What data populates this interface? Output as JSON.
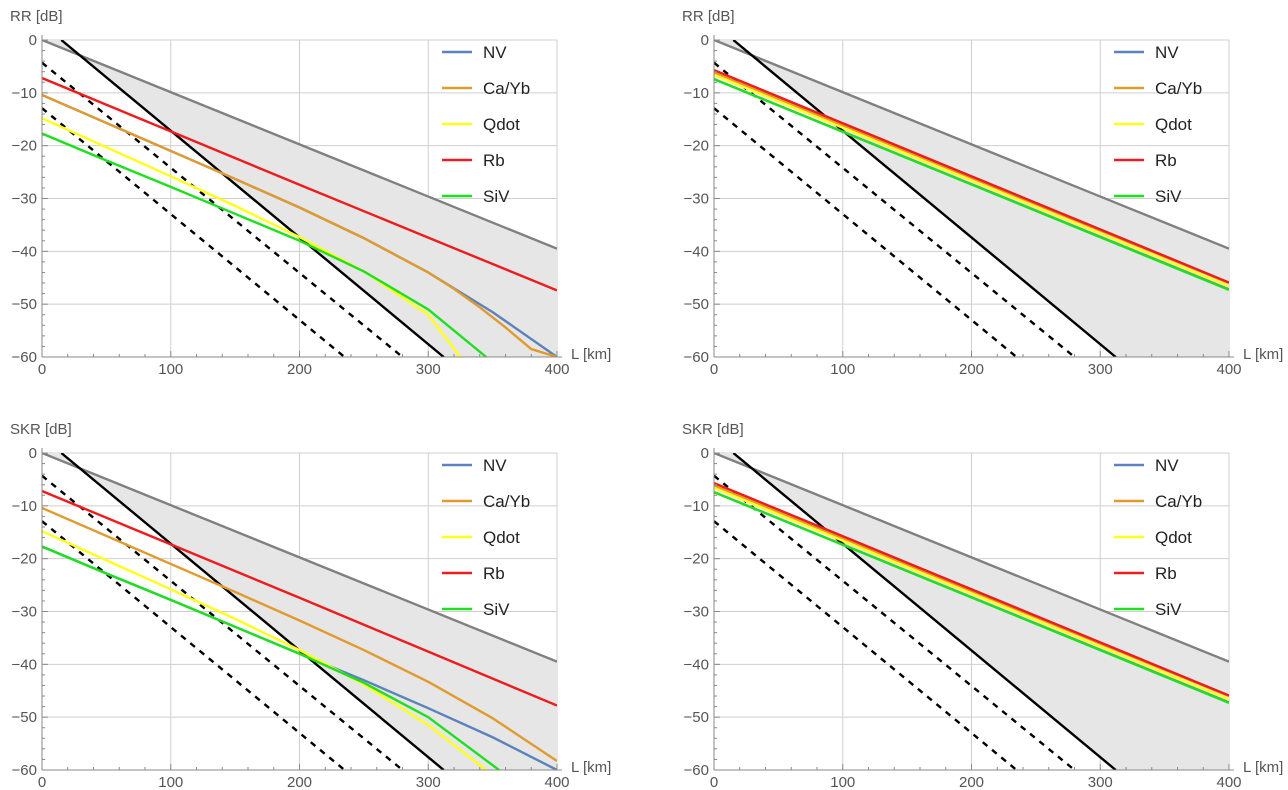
{
  "chart_data": [
    {
      "type": "line",
      "panel": "top-left",
      "ylabel": "RR [dB]",
      "xlabel": "L [km]",
      "xlim": [
        0,
        400
      ],
      "ylim": [
        -60,
        0
      ],
      "xticks": [
        0,
        100,
        200,
        300,
        400
      ],
      "yticks": [
        0,
        -10,
        -20,
        -30,
        -40,
        -50,
        -60
      ],
      "grid": true,
      "legend_position": "top-right",
      "shaded_region": "between upper bound (gray) and steep black line",
      "series": [
        {
          "name": "NV",
          "color": "#5b82bd",
          "x": [
            0,
            50,
            100,
            150,
            200,
            250,
            300,
            350,
            400
          ],
          "y": [
            -10.4,
            -15.7,
            -21.0,
            -26.3,
            -31.7,
            -37.5,
            -44.0,
            -51.5,
            -60.0
          ]
        },
        {
          "name": "Ca/Yb",
          "color": "#e19a2e",
          "x": [
            0,
            50,
            100,
            150,
            200,
            250,
            300,
            320,
            340,
            360,
            380,
            400
          ],
          "y": [
            -10.4,
            -15.7,
            -21.0,
            -26.3,
            -31.7,
            -37.5,
            -44.0,
            -47.1,
            -50.6,
            -54.4,
            -58.5,
            -60.0
          ]
        },
        {
          "name": "Qdot",
          "color": "#ffff1a",
          "x": [
            0,
            50,
            100,
            150,
            200,
            250,
            300,
            325
          ],
          "y": [
            -14.8,
            -20.3,
            -25.8,
            -31.4,
            -37.3,
            -43.8,
            -52.0,
            -60.0
          ]
        },
        {
          "name": "Rb",
          "color": "#ee1c1c",
          "x": [
            0,
            100,
            200,
            300,
            400
          ],
          "y": [
            -7.2,
            -17.3,
            -27.4,
            -37.4,
            -47.4
          ]
        },
        {
          "name": "SiV",
          "color": "#1fe01f",
          "x": [
            0,
            50,
            100,
            150,
            200,
            250,
            300,
            345
          ],
          "y": [
            -17.7,
            -22.8,
            -27.8,
            -32.9,
            -38.0,
            -43.8,
            -51.0,
            -60.0
          ]
        },
        {
          "name": "",
          "color": "#808080",
          "x": [
            0,
            400
          ],
          "y": [
            0,
            -39.5
          ]
        },
        {
          "name": "",
          "color": "#000000",
          "x": [
            15,
            312
          ],
          "y": [
            0,
            -60
          ]
        },
        {
          "name": "",
          "color": "#000000",
          "dashed": true,
          "x": [
            0,
            280
          ],
          "y": [
            -4.3,
            -60
          ]
        },
        {
          "name": "",
          "color": "#000000",
          "dashed": true,
          "x": [
            0,
            235
          ],
          "y": [
            -12.9,
            -60
          ]
        }
      ]
    },
    {
      "type": "line",
      "panel": "top-right",
      "ylabel": "RR [dB]",
      "xlabel": "L [km]",
      "xlim": [
        0,
        400
      ],
      "ylim": [
        -60,
        0
      ],
      "xticks": [
        0,
        100,
        200,
        300,
        400
      ],
      "yticks": [
        0,
        -10,
        -20,
        -30,
        -40,
        -50,
        -60
      ],
      "grid": true,
      "legend_position": "top-right",
      "series": [
        {
          "name": "NV",
          "color": "#5b82bd",
          "x": [
            0,
            400
          ],
          "y": [
            -7.4,
            -47.2
          ]
        },
        {
          "name": "Ca/Yb",
          "color": "#e19a2e",
          "x": [
            0,
            400
          ],
          "y": [
            -6.2,
            -46.0
          ]
        },
        {
          "name": "Qdot",
          "color": "#ffff1a",
          "x": [
            0,
            400
          ],
          "y": [
            -6.6,
            -46.6
          ]
        },
        {
          "name": "Rb",
          "color": "#ee1c1c",
          "x": [
            0,
            400
          ],
          "y": [
            -5.7,
            -45.9
          ]
        },
        {
          "name": "SiV",
          "color": "#1fe01f",
          "x": [
            0,
            400
          ],
          "y": [
            -7.4,
            -47.3
          ]
        },
        {
          "name": "",
          "color": "#808080",
          "x": [
            0,
            400
          ],
          "y": [
            0,
            -39.5
          ]
        },
        {
          "name": "",
          "color": "#000000",
          "x": [
            15,
            312
          ],
          "y": [
            0,
            -60
          ]
        },
        {
          "name": "",
          "color": "#000000",
          "dashed": true,
          "x": [
            0,
            280
          ],
          "y": [
            -4.3,
            -60
          ]
        },
        {
          "name": "",
          "color": "#000000",
          "dashed": true,
          "x": [
            0,
            235
          ],
          "y": [
            -12.9,
            -60
          ]
        }
      ]
    },
    {
      "type": "line",
      "panel": "bottom-left",
      "ylabel": "SKR [dB]",
      "xlabel": "L [km]",
      "xlim": [
        0,
        400
      ],
      "ylim": [
        -60,
        0
      ],
      "xticks": [
        0,
        100,
        200,
        300,
        400
      ],
      "yticks": [
        0,
        -10,
        -20,
        -30,
        -40,
        -50,
        -60
      ],
      "grid": true,
      "legend_position": "top-right",
      "series": [
        {
          "name": "NV",
          "color": "#5b82bd",
          "x": [
            0,
            50,
            100,
            150,
            200,
            250,
            300,
            350,
            400
          ],
          "y": [
            -17.7,
            -22.8,
            -27.8,
            -32.9,
            -38.0,
            -43.0,
            -48.3,
            -53.8,
            -60.0
          ]
        },
        {
          "name": "Ca/Yb",
          "color": "#e19a2e",
          "x": [
            0,
            50,
            100,
            150,
            200,
            250,
            300,
            350,
            400
          ],
          "y": [
            -10.4,
            -15.7,
            -21.0,
            -26.3,
            -31.7,
            -37.3,
            -43.3,
            -50.2,
            -58.3
          ]
        },
        {
          "name": "Qdot",
          "color": "#ffff1a",
          "x": [
            0,
            50,
            100,
            150,
            200,
            250,
            300,
            345
          ],
          "y": [
            -14.8,
            -20.3,
            -25.8,
            -31.4,
            -37.3,
            -43.8,
            -51.5,
            -60.0
          ]
        },
        {
          "name": "Rb",
          "color": "#ee1c1c",
          "x": [
            0,
            100,
            200,
            300,
            400
          ],
          "y": [
            -7.2,
            -17.3,
            -27.4,
            -37.6,
            -47.8
          ]
        },
        {
          "name": "SiV",
          "color": "#1fe01f",
          "x": [
            0,
            50,
            100,
            150,
            200,
            250,
            300,
            355
          ],
          "y": [
            -17.7,
            -22.8,
            -27.8,
            -32.9,
            -38.0,
            -43.5,
            -50.0,
            -60.0
          ]
        },
        {
          "name": "",
          "color": "#808080",
          "x": [
            0,
            400
          ],
          "y": [
            0,
            -39.5
          ]
        },
        {
          "name": "",
          "color": "#000000",
          "x": [
            15,
            312
          ],
          "y": [
            0,
            -60
          ]
        },
        {
          "name": "",
          "color": "#000000",
          "dashed": true,
          "x": [
            0,
            280
          ],
          "y": [
            -4.3,
            -60
          ]
        },
        {
          "name": "",
          "color": "#000000",
          "dashed": true,
          "x": [
            0,
            235
          ],
          "y": [
            -12.9,
            -60
          ]
        }
      ]
    },
    {
      "type": "line",
      "panel": "bottom-right",
      "ylabel": "SKR [dB]",
      "xlabel": "L [km]",
      "xlim": [
        0,
        400
      ],
      "ylim": [
        -60,
        0
      ],
      "xticks": [
        0,
        100,
        200,
        300,
        400
      ],
      "yticks": [
        0,
        -10,
        -20,
        -30,
        -40,
        -50,
        -60
      ],
      "grid": true,
      "legend_position": "top-right",
      "series": [
        {
          "name": "NV",
          "color": "#5b82bd",
          "x": [
            0,
            400
          ],
          "y": [
            -7.4,
            -47.2
          ]
        },
        {
          "name": "Ca/Yb",
          "color": "#e19a2e",
          "x": [
            0,
            400
          ],
          "y": [
            -6.2,
            -46.0
          ]
        },
        {
          "name": "Qdot",
          "color": "#ffff1a",
          "x": [
            0,
            400
          ],
          "y": [
            -6.6,
            -46.6
          ]
        },
        {
          "name": "Rb",
          "color": "#ee1c1c",
          "x": [
            0,
            400
          ],
          "y": [
            -5.7,
            -45.9
          ]
        },
        {
          "name": "SiV",
          "color": "#1fe01f",
          "x": [
            0,
            400
          ],
          "y": [
            -7.4,
            -47.3
          ]
        },
        {
          "name": "",
          "color": "#808080",
          "x": [
            0,
            400
          ],
          "y": [
            0,
            -39.5
          ]
        },
        {
          "name": "",
          "color": "#000000",
          "x": [
            15,
            312
          ],
          "y": [
            0,
            -60
          ]
        },
        {
          "name": "",
          "color": "#000000",
          "dashed": true,
          "x": [
            0,
            280
          ],
          "y": [
            -4.3,
            -60
          ]
        },
        {
          "name": "",
          "color": "#000000",
          "dashed": true,
          "x": [
            0,
            235
          ],
          "y": [
            -12.9,
            -60
          ]
        }
      ]
    }
  ]
}
